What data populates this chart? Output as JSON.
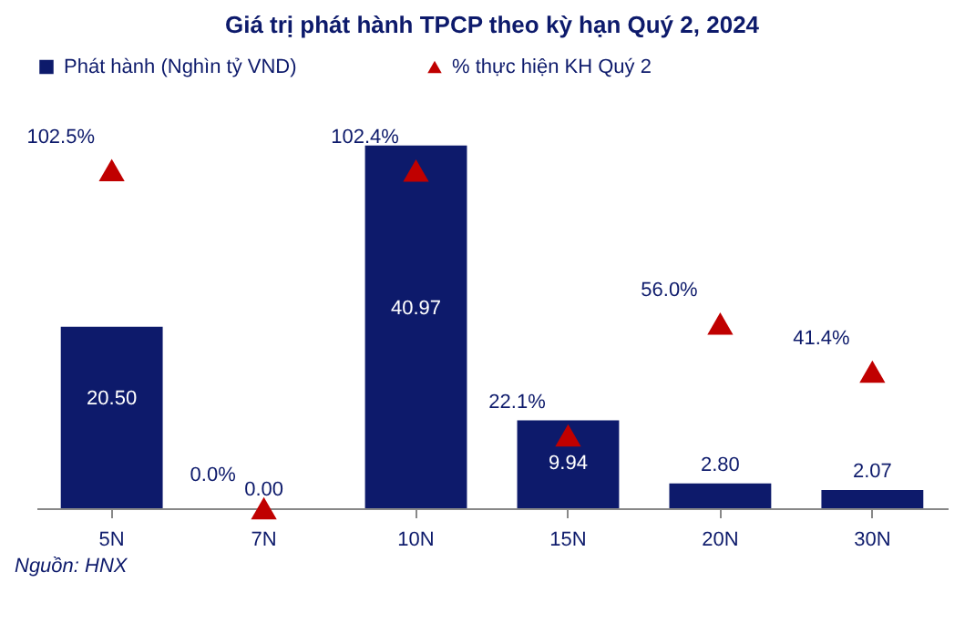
{
  "chart_data": {
    "type": "bar",
    "title": "Giá trị phát hành TPCP theo kỳ hạn Quý 2, 2024",
    "categories": [
      "5N",
      "7N",
      "10N",
      "15N",
      "20N",
      "30N"
    ],
    "series": [
      {
        "name": "Phát hành (Nghìn tỷ VND)",
        "color": "#0d1a6b",
        "values": [
          20.5,
          0,
          40.97,
          9.94,
          2.8,
          2.07
        ],
        "value_labels": [
          "20.50",
          "0.00",
          "40.97",
          "9.94",
          "2.80",
          "2.07"
        ]
      },
      {
        "name": "% thực hiện KH Quý 2",
        "type": "scatter",
        "axis": "y2",
        "marker": "triangle",
        "color": "#c00000",
        "values": [
          102.5,
          0,
          102.4,
          22.1,
          56.0,
          41.4
        ],
        "value_labels": [
          "102.5%",
          "0.0%",
          "102.4%",
          "22.1%",
          "56.0%",
          "41.4%"
        ]
      }
    ],
    "legend": "top",
    "annotations": [
      "Nguồn: HNX"
    ]
  }
}
